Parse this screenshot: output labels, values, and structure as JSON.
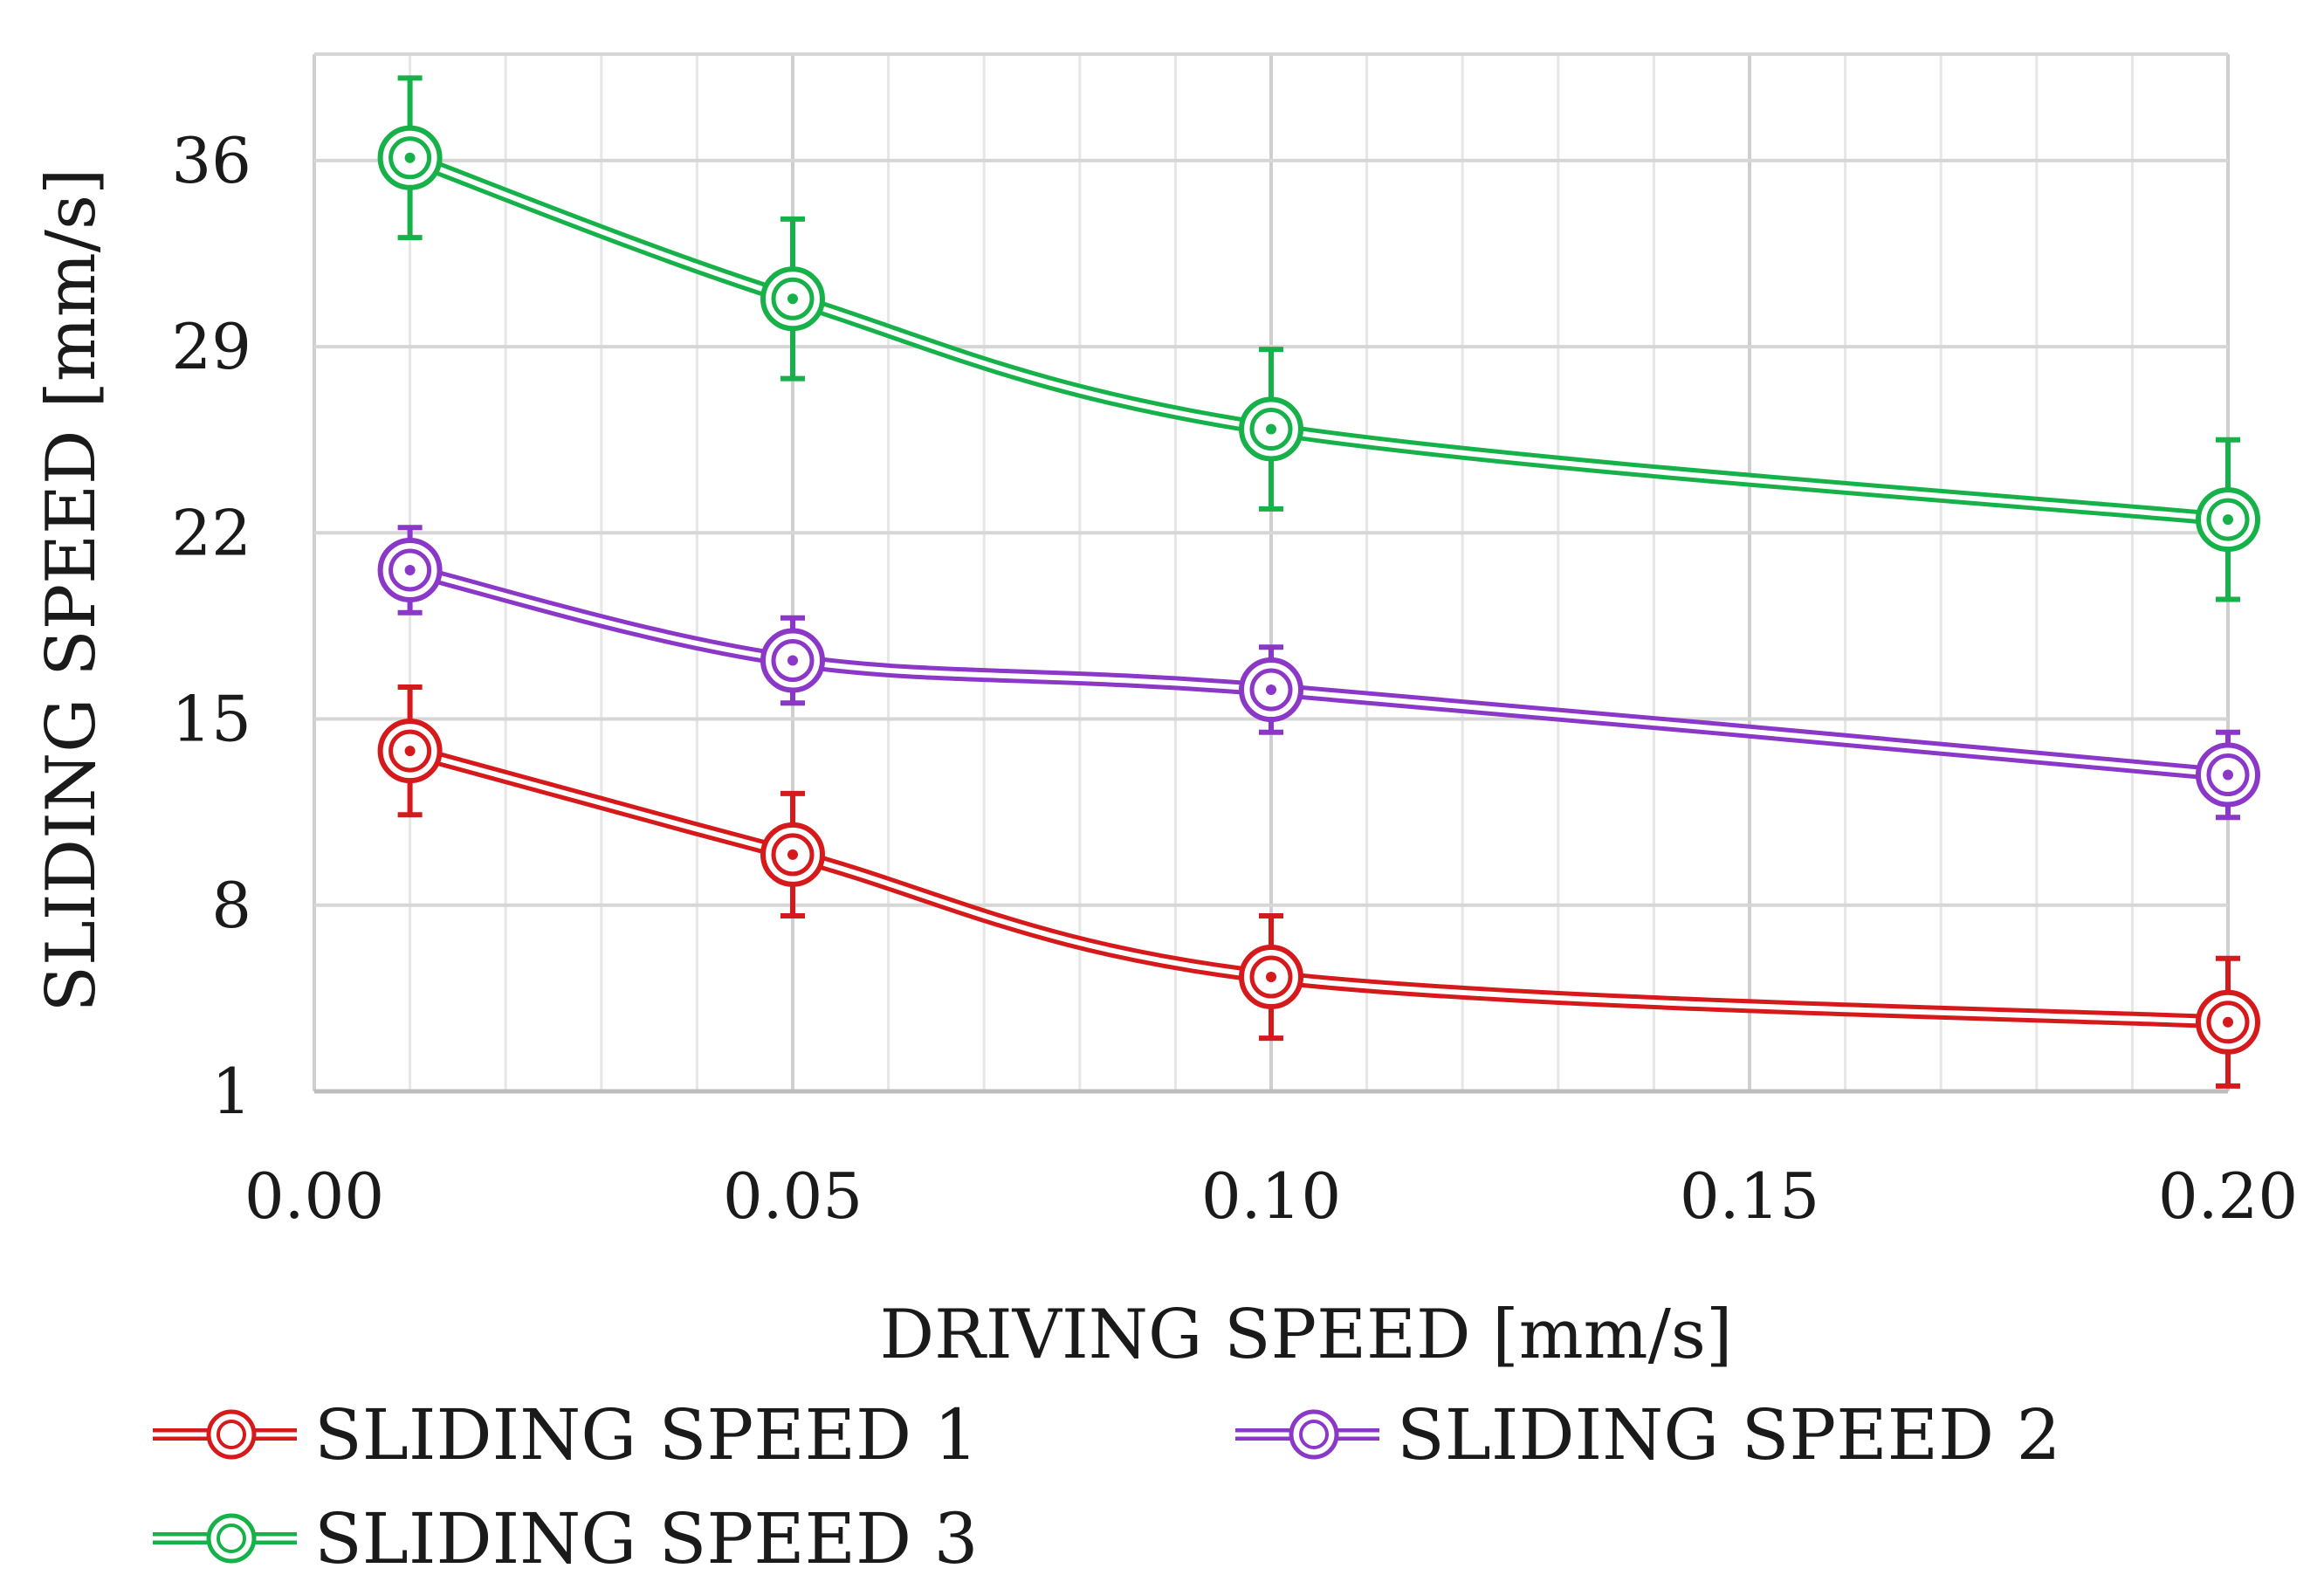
{
  "chart_data": {
    "type": "line",
    "title": "",
    "xlabel": "DRIVING SPEED [mm/s]",
    "ylabel": "SLIDING SPEED [mm/s]",
    "xlim": [
      0.0,
      0.2
    ],
    "ylim": [
      1,
      40
    ],
    "x_ticks": [
      "0.00",
      "0.05",
      "0.10",
      "0.15",
      "0.20"
    ],
    "y_ticks": [
      "1",
      "8",
      "15",
      "22",
      "29",
      "36"
    ],
    "x": [
      0.01,
      0.05,
      0.1,
      0.2
    ],
    "series": [
      {
        "name": "SLIDING SPEED 1",
        "color": "#d6191b",
        "values": [
          13.8,
          9.9,
          5.3,
          3.6
        ],
        "error": [
          2.4,
          2.3,
          2.3,
          2.4
        ]
      },
      {
        "name": "SLIDING SPEED 2",
        "color": "#8b37c8",
        "values": [
          20.6,
          17.2,
          16.1,
          12.9
        ],
        "error": [
          1.6,
          1.6,
          1.6,
          1.6
        ]
      },
      {
        "name": "SLIDING SPEED 3",
        "color": "#17b14a",
        "values": [
          36.1,
          30.8,
          25.9,
          22.5
        ],
        "error": [
          3.0,
          3.0,
          3.0,
          3.0
        ]
      }
    ],
    "grid": true,
    "legend_position": "bottom"
  }
}
